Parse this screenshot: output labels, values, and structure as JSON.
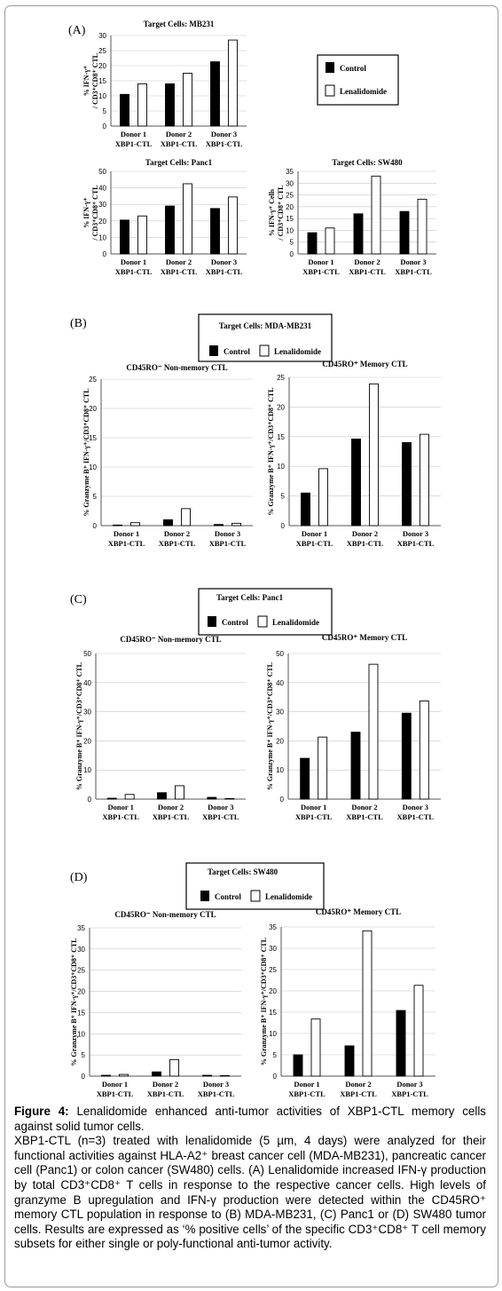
{
  "panels": {
    "A": "(A)",
    "B": "(B)",
    "C": "(C)",
    "D": "(D)"
  },
  "legend_labels": {
    "control": "Control",
    "lenalidomide": "Lenalidomide"
  },
  "legend_titles": {
    "B": "Target Cells: MDA-MB231",
    "C": "Target Cells: Panc1",
    "D": "Target Cells: SW480"
  },
  "colors": {
    "control": "#000000",
    "lenalidomide": "#ffffff"
  },
  "chart_data": [
    {
      "id": "A1",
      "type": "bar",
      "title": "Target Cells: MB231",
      "ylabel": [
        "% IFN-γ⁺",
        "/ CD3⁺CD8⁺ CTL"
      ],
      "ylim": [
        0,
        30
      ],
      "yticks": [
        0,
        5,
        10,
        15,
        20,
        25,
        30
      ],
      "categories": [
        [
          "Donor 1",
          "XBP1-CTL"
        ],
        [
          "Donor 2",
          "XBP1-CTL"
        ],
        [
          "Donor 3",
          "XBP1-CTL"
        ]
      ],
      "series": [
        {
          "name": "Control",
          "values": [
            10.5,
            14,
            21.3
          ]
        },
        {
          "name": "Lenalidomide",
          "values": [
            14,
            17.5,
            28.5
          ]
        }
      ]
    },
    {
      "id": "A2",
      "type": "bar",
      "title": "Target Cells: Panc1",
      "ylabel": [
        "% IFN-γ⁺",
        "/ CD3⁺CD8⁺ CTL"
      ],
      "ylim": [
        0,
        50
      ],
      "yticks": [
        0,
        10,
        20,
        30,
        40,
        50
      ],
      "categories": [
        [
          "Donor 1",
          "XBP1-CTL"
        ],
        [
          "Donor 2",
          "XBP1-CTL"
        ],
        [
          "Donor 3",
          "XBP1-CTL"
        ]
      ],
      "series": [
        {
          "name": "Control",
          "values": [
            20.5,
            29,
            27.5
          ]
        },
        {
          "name": "Lenalidomide",
          "values": [
            23,
            42.5,
            34.5
          ]
        }
      ]
    },
    {
      "id": "A3",
      "type": "bar",
      "title": "Target Cells: SW480",
      "ylabel": [
        "% IFN-γ⁺ Cells",
        "/ CD3⁺CD8⁺ CTL"
      ],
      "ylim": [
        0,
        35
      ],
      "yticks": [
        0,
        5,
        10,
        15,
        20,
        25,
        30,
        35
      ],
      "categories": [
        [
          "Donor 1",
          "XBP1-CTL"
        ],
        [
          "Donor 2",
          "XBP1-CTL"
        ],
        [
          "Donor 3",
          "XBP1-CTL"
        ]
      ],
      "series": [
        {
          "name": "Control",
          "values": [
            9,
            17,
            18
          ]
        },
        {
          "name": "Lenalidomide",
          "values": [
            11,
            33,
            23.2
          ]
        }
      ]
    },
    {
      "id": "B1",
      "type": "bar",
      "title": "CD45RO⁻ Non-memory CTL",
      "ylabel": [
        "% Granzyme B⁺ IFN-γ⁺/CD3⁺CD8⁺ CTL"
      ],
      "ylim": [
        0,
        25
      ],
      "yticks": [
        0,
        5,
        10,
        15,
        20,
        25
      ],
      "categories": [
        [
          "Donor 1",
          "XBP1-CTL"
        ],
        [
          "Donor 2",
          "XBP1-CTL"
        ],
        [
          "Donor 3",
          "XBP1-CTL"
        ]
      ],
      "series": [
        {
          "name": "Control",
          "values": [
            0.1,
            1,
            0.2
          ]
        },
        {
          "name": "Lenalidomide",
          "values": [
            0.5,
            2.9,
            0.4
          ]
        }
      ]
    },
    {
      "id": "B2",
      "type": "bar",
      "title": "CD45RO⁺ Memory CTL",
      "ylabel": [
        "% Granzyme B⁺ IFN-γ⁺/CD3⁺CD8⁺ CTL"
      ],
      "ylim": [
        0,
        25
      ],
      "yticks": [
        0,
        5,
        10,
        15,
        20,
        25
      ],
      "categories": [
        [
          "Donor 1",
          "XBP1-CTL"
        ],
        [
          "Donor 2",
          "XBP1-CTL"
        ],
        [
          "Donor 3",
          "XBP1-CTL"
        ]
      ],
      "series": [
        {
          "name": "Control",
          "values": [
            5.5,
            14.6,
            14
          ]
        },
        {
          "name": "Lenalidomide",
          "values": [
            9.6,
            23.9,
            15.4
          ]
        }
      ]
    },
    {
      "id": "C1",
      "type": "bar",
      "title": "CD45RO⁻ Non-memory CTL",
      "ylabel": [
        "% Granzyme B⁺ IFN-γ⁺/CD3⁺CD8⁺ CTL"
      ],
      "ylim": [
        0,
        50
      ],
      "yticks": [
        0,
        10,
        20,
        30,
        40,
        50
      ],
      "categories": [
        [
          "Donor 1",
          "XBP1-CTL"
        ],
        [
          "Donor 2",
          "XBP1-CTL"
        ],
        [
          "Donor 3",
          "XBP1-CTL"
        ]
      ],
      "series": [
        {
          "name": "Control",
          "values": [
            0.3,
            2.2,
            0.6
          ]
        },
        {
          "name": "Lenalidomide",
          "values": [
            1.6,
            4.6,
            0.2
          ]
        }
      ]
    },
    {
      "id": "C2",
      "type": "bar",
      "title": "CD45RO⁺ Memory CTL",
      "ylabel": [
        "% Granzyme B⁺ IFN-γ⁺/CD3⁺CD8⁺ CTL"
      ],
      "ylim": [
        0,
        50
      ],
      "yticks": [
        0,
        10,
        20,
        30,
        40,
        50
      ],
      "categories": [
        [
          "Donor 1",
          "XBP1-CTL"
        ],
        [
          "Donor 2",
          "XBP1-CTL"
        ],
        [
          "Donor 3",
          "XBP1-CTL"
        ]
      ],
      "series": [
        {
          "name": "Control",
          "values": [
            14,
            23,
            29.5
          ]
        },
        {
          "name": "Lenalidomide",
          "values": [
            21.3,
            46.3,
            33.7
          ]
        }
      ]
    },
    {
      "id": "D1",
      "type": "bar",
      "title": "CD45RO⁻ Non-memory CTL",
      "ylabel": [
        "% Granzyme B⁺ IFN-γ⁺/CD3⁺CD8⁺ CTL"
      ],
      "ylim": [
        0,
        35
      ],
      "yticks": [
        0,
        5,
        10,
        15,
        20,
        25,
        30,
        35
      ],
      "categories": [
        [
          "Donor 1",
          "XBP1-CTL"
        ],
        [
          "Donor 2",
          "XBP1-CTL"
        ],
        [
          "Donor 3",
          "XBP1-CTL"
        ]
      ],
      "series": [
        {
          "name": "Control",
          "values": [
            0.2,
            1,
            0.2
          ]
        },
        {
          "name": "Lenalidomide",
          "values": [
            0.4,
            3.9,
            0
          ]
        }
      ]
    },
    {
      "id": "D2",
      "type": "bar",
      "title": "CD45RO⁺ Memory CTL",
      "ylabel": [
        "% Granzyme B⁺ IFN-γ⁺/CD3⁺CD8⁺ CTL"
      ],
      "ylim": [
        0,
        35
      ],
      "yticks": [
        0,
        5,
        10,
        15,
        20,
        25,
        30,
        35
      ],
      "categories": [
        [
          "Donor 1",
          "XBP1-CTL"
        ],
        [
          "Donor 2",
          "XBP1-CTL"
        ],
        [
          "Donor 3",
          "XBP1-CTL"
        ]
      ],
      "series": [
        {
          "name": "Control",
          "values": [
            5,
            7.1,
            15.4
          ]
        },
        {
          "name": "Lenalidomide",
          "values": [
            13.4,
            34.1,
            21.3
          ]
        }
      ]
    }
  ],
  "caption": {
    "label": "Figure 4:",
    "title": " Lenalidomide enhanced anti-tumor activities of XBP1-CTL memory cells against solid tumor cells.",
    "body": "XBP1-CTL (n=3) treated with lenalidomide (5 µm, 4 days) were analyzed for their functional activities against HLA-A2⁺ breast cancer cell (MDA-MB231), pancreatic cancer cell (Panc1) or colon cancer (SW480) cells. (A) Lenalidomide increased IFN-γ production by total CD3⁺CD8⁺ T cells in response to the respective cancer cells. High levels of granzyme B upregulation and IFN-γ production were detected within the CD45RO⁺ memory CTL population in response to (B) MDA-MB231, (C) Panc1 or (D) SW480 tumor cells. Results are expressed as ‘% positive cells’ of the specific CD3⁺CD8⁺ T cell memory subsets for either single or poly-functional anti-tumor activity."
  }
}
